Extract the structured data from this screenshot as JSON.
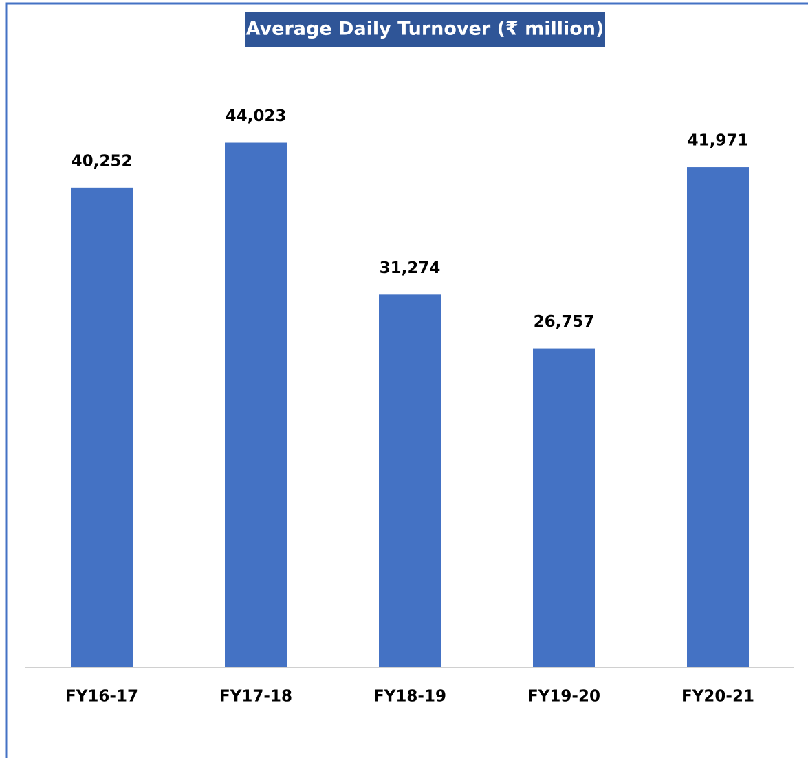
{
  "chart_data": {
    "type": "bar",
    "title": "Average Daily Turnover (₹ million)",
    "categories": [
      "FY16-17",
      "FY17-18",
      "FY18-19",
      "FY19-20",
      "FY20-21"
    ],
    "values": [
      40252,
      44023,
      31274,
      26757,
      41971
    ],
    "value_labels": [
      "40,252",
      "44,023",
      "31,274",
      "26,757",
      "41,971"
    ],
    "color": "#4472c4",
    "ylim": [
      0,
      50000
    ]
  }
}
